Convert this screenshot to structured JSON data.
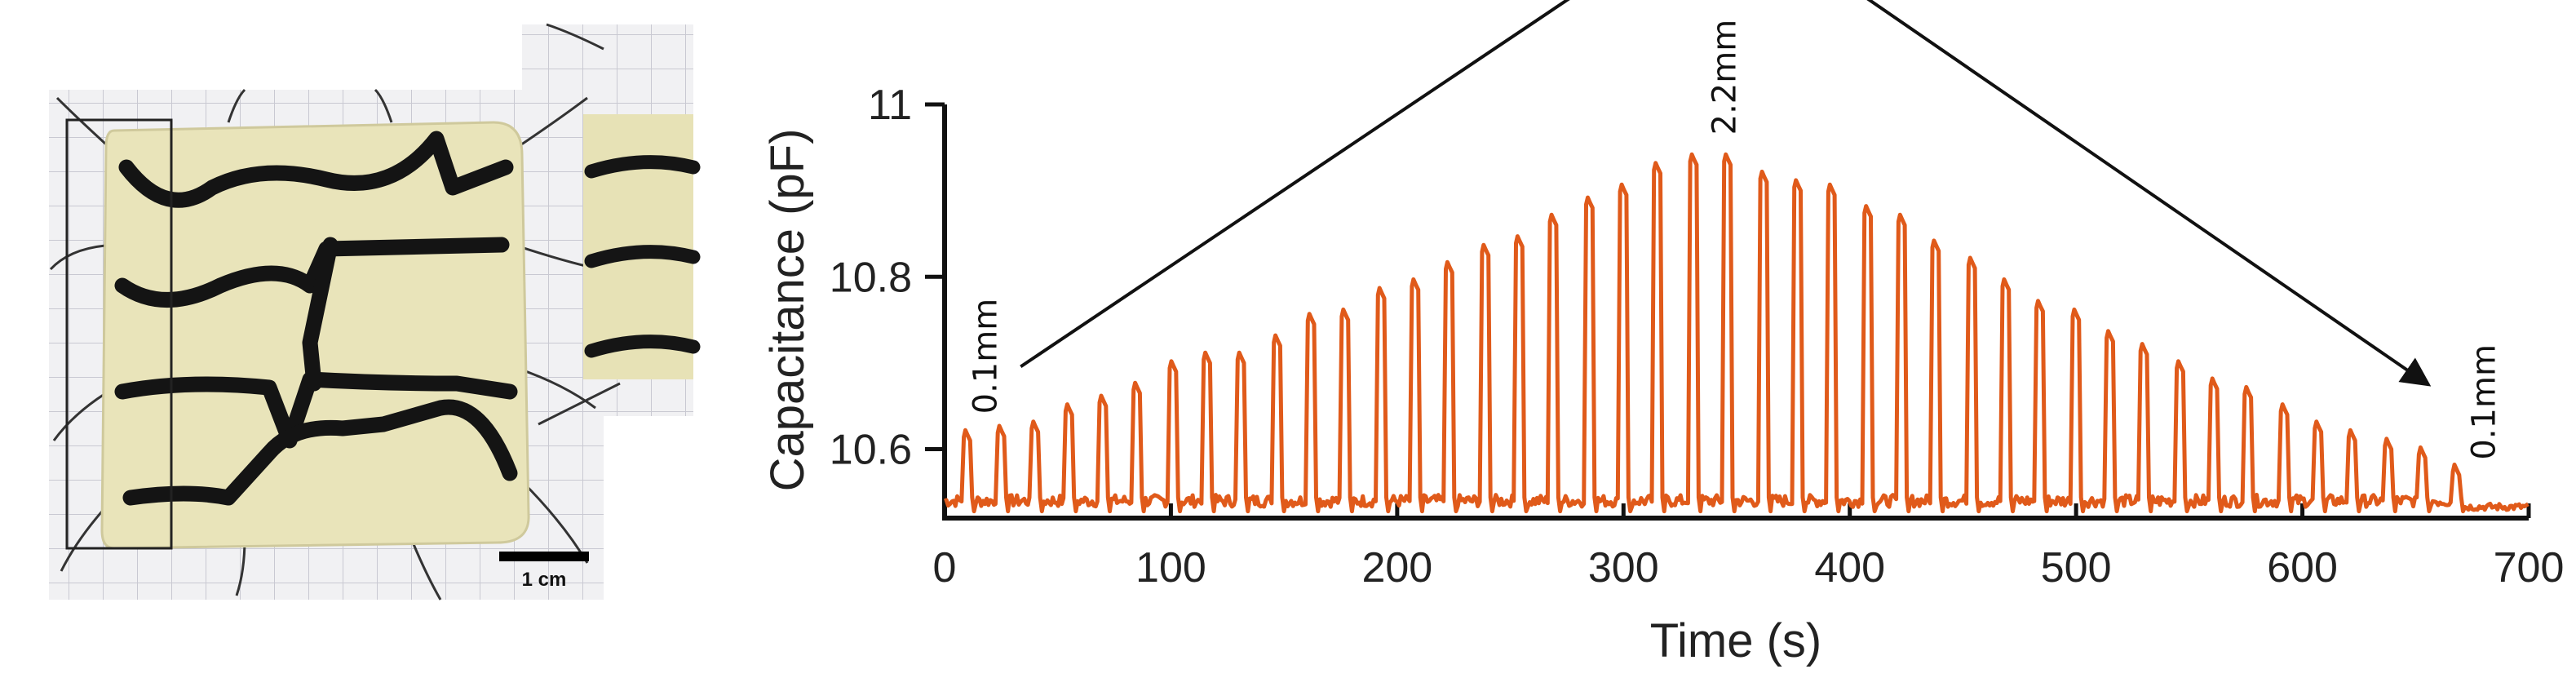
{
  "photo": {
    "scale_bar_label": "1 cm"
  },
  "chart_data": {
    "type": "line",
    "title": "",
    "xlabel": "Time (s)",
    "ylabel": "Capacitance (pF)",
    "xlim": [
      0,
      700
    ],
    "ylim": [
      10.52,
      11.0
    ],
    "xticks": [
      0,
      100,
      200,
      300,
      400,
      500,
      600,
      700
    ],
    "xtick_labels": [
      "0",
      "100",
      "200",
      "300",
      "400",
      "500",
      "600",
      "700"
    ],
    "yticks": [
      10.6,
      10.8,
      11.0
    ],
    "ytick_labels": [
      "10.6",
      "10.8",
      "11"
    ],
    "grid": false,
    "line_color": "#e05a1a",
    "baseline_pF": 10.54,
    "pulses": {
      "times_s": [
        10,
        25,
        40,
        55,
        70,
        85,
        101,
        116,
        131,
        147,
        162,
        177,
        193,
        208,
        223,
        239,
        254,
        269,
        285,
        300,
        315,
        331,
        346,
        362,
        377,
        392,
        408,
        423,
        438,
        454,
        469,
        484,
        500,
        515,
        530,
        546,
        561,
        576,
        592,
        607,
        622,
        638,
        653,
        668
      ],
      "peaks_pF": [
        10.62,
        10.625,
        10.63,
        10.65,
        10.66,
        10.675,
        10.7,
        10.71,
        10.71,
        10.73,
        10.755,
        10.76,
        10.785,
        10.795,
        10.815,
        10.835,
        10.845,
        10.87,
        10.89,
        10.905,
        10.93,
        10.94,
        10.94,
        10.92,
        10.91,
        10.905,
        10.88,
        10.87,
        10.84,
        10.82,
        10.795,
        10.77,
        10.76,
        10.735,
        10.72,
        10.7,
        10.68,
        10.67,
        10.65,
        10.63,
        10.62,
        10.61,
        10.6,
        10.58
      ]
    },
    "annotations": [
      {
        "text": "0.1mm",
        "x": 12,
        "y": 10.62
      },
      {
        "text": "2.2mm",
        "x": 338,
        "y": 10.94
      },
      {
        "text": "0.1mm",
        "x": 672,
        "y": 10.58
      }
    ]
  }
}
